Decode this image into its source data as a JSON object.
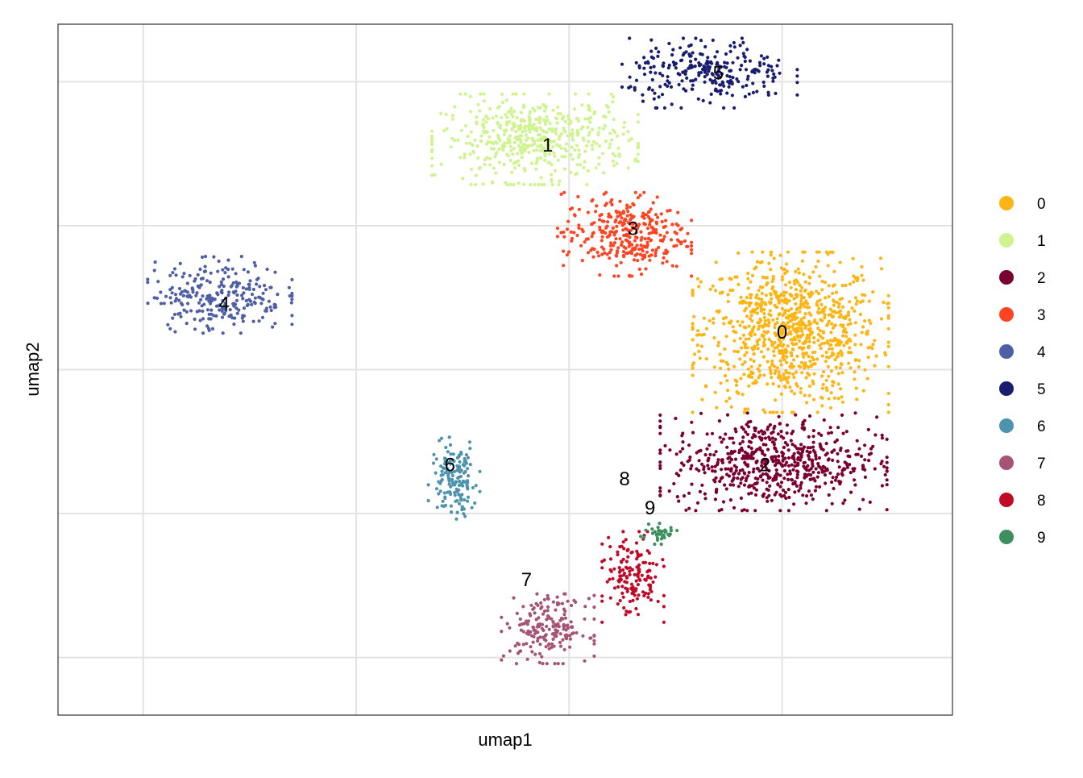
{
  "chart_data": {
    "type": "scatter",
    "xlabel": "umap1",
    "ylabel": "umap2",
    "xlim": [
      -7.0,
      14.0
    ],
    "ylim": [
      -12.0,
      12.0
    ],
    "grid": true,
    "tick_labels_shown": false,
    "legend_position": "right",
    "legend": [
      {
        "label": "0",
        "color": "#FDB515"
      },
      {
        "label": "1",
        "color": "#CFF48F"
      },
      {
        "label": "2",
        "color": "#7A0031"
      },
      {
        "label": "3",
        "color": "#FE4423"
      },
      {
        "label": "4",
        "color": "#4F5FA5"
      },
      {
        "label": "5",
        "color": "#191D6F"
      },
      {
        "label": "6",
        "color": "#4E93AD"
      },
      {
        "label": "7",
        "color": "#A65475"
      },
      {
        "label": "8",
        "color": "#C10A28"
      },
      {
        "label": "9",
        "color": "#3E8F5E"
      }
    ],
    "clusters": [
      {
        "label": "0",
        "center": [
          10.2,
          1.3
        ],
        "spread": [
          1.9,
          2.3
        ],
        "count": 900
      },
      {
        "label": "1",
        "center": [
          4.2,
          8.0
        ],
        "spread": [
          2.0,
          1.3
        ],
        "count": 500
      },
      {
        "label": "2",
        "center": [
          9.8,
          -3.2
        ],
        "spread": [
          2.2,
          1.4
        ],
        "count": 620
      },
      {
        "label": "3",
        "center": [
          6.3,
          4.7
        ],
        "spread": [
          1.3,
          1.2
        ],
        "count": 320
      },
      {
        "label": "4",
        "center": [
          -3.2,
          2.6
        ],
        "spread": [
          1.4,
          1.1
        ],
        "count": 260
      },
      {
        "label": "5",
        "center": [
          8.3,
          10.3
        ],
        "spread": [
          1.7,
          1.0
        ],
        "count": 260
      },
      {
        "label": "6",
        "center": [
          2.3,
          -3.8
        ],
        "spread": [
          0.5,
          1.2
        ],
        "count": 150
      },
      {
        "label": "7",
        "center": [
          4.5,
          -9.0
        ],
        "spread": [
          0.9,
          1.0
        ],
        "count": 190
      },
      {
        "label": "8",
        "center": [
          6.5,
          -7.2
        ],
        "spread": [
          0.6,
          1.3
        ],
        "count": 150
      },
      {
        "label": "9",
        "center": [
          7.1,
          -5.7
        ],
        "spread": [
          0.4,
          0.3
        ],
        "count": 40
      }
    ],
    "cluster_labels": [
      {
        "text": "0",
        "x": 10.0,
        "y": 1.3
      },
      {
        "text": "1",
        "x": 4.5,
        "y": 7.8
      },
      {
        "text": "2",
        "x": 9.6,
        "y": -3.3
      },
      {
        "text": "3",
        "x": 6.5,
        "y": 4.9
      },
      {
        "text": "4",
        "x": -3.1,
        "y": 2.3
      },
      {
        "text": "5",
        "x": 8.5,
        "y": 10.3
      },
      {
        "text": "6",
        "x": 2.2,
        "y": -3.3
      },
      {
        "text": "7",
        "x": 4.0,
        "y": -7.3
      },
      {
        "text": "8",
        "x": 6.3,
        "y": -3.8
      },
      {
        "text": "9",
        "x": 6.9,
        "y": -4.8
      }
    ]
  }
}
